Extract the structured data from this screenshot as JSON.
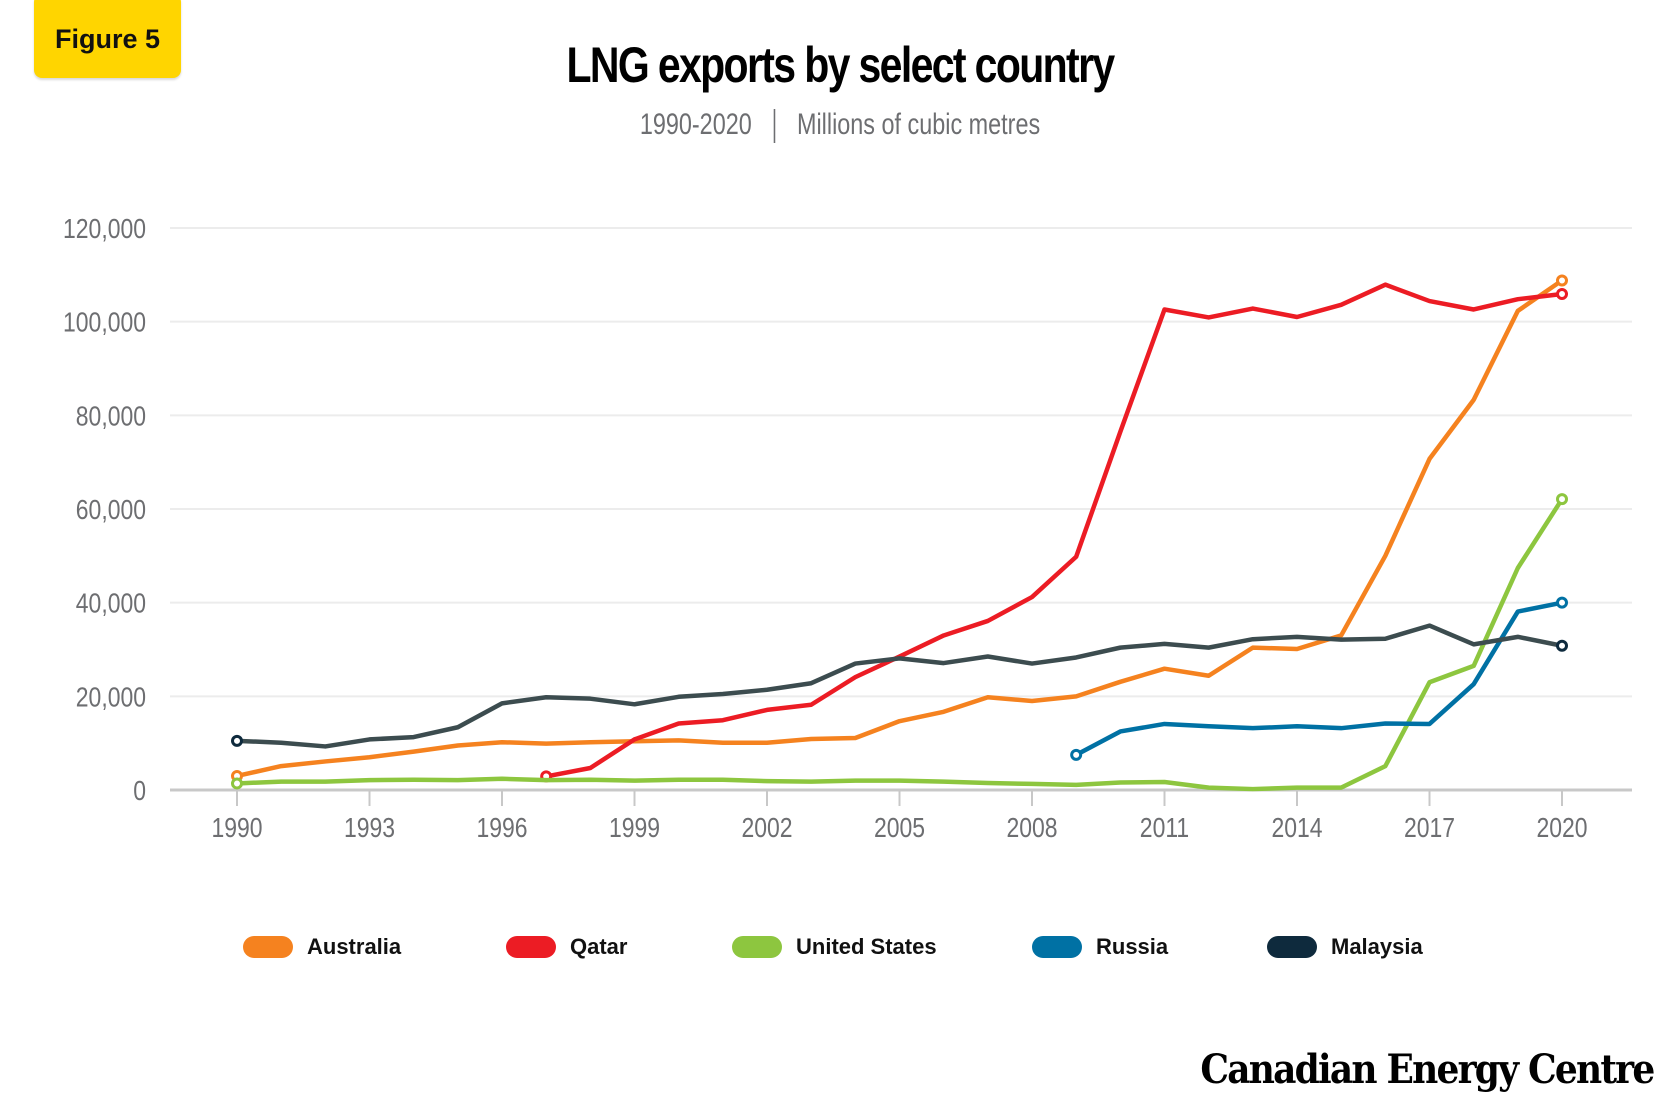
{
  "badge": "Figure 5",
  "logo": "Canadian Energy Centre",
  "chart_data": {
    "type": "line",
    "title": "LNG exports by select country",
    "subtitle_period": "1990-2020",
    "subtitle_unit": "Millions of cubic metres",
    "xlim": [
      1990,
      2020
    ],
    "ylim": [
      0,
      120000
    ],
    "x_ticks": [
      1990,
      1993,
      1996,
      1999,
      2002,
      2005,
      2008,
      2011,
      2014,
      2017,
      2020
    ],
    "y_ticks": [
      0,
      20000,
      40000,
      60000,
      80000,
      100000,
      120000
    ],
    "y_tick_labels": [
      "0",
      "20,000",
      "40,000",
      "60,000",
      "80,000",
      "100,000",
      "120,000"
    ],
    "grid": "horizontal",
    "legend_position": "bottom",
    "series": [
      {
        "name": "Australia",
        "color": "#f5821f",
        "start": 1990,
        "values": [
          3000,
          5100,
          6100,
          7000,
          8200,
          9500,
          10200,
          9900,
          10200,
          10400,
          10600,
          10100,
          10100,
          10900,
          11100,
          14700,
          16700,
          19800,
          19000,
          20000,
          23100,
          25900,
          24400,
          30400,
          30100,
          33000,
          50000,
          70700,
          83300,
          102300,
          108800
        ]
      },
      {
        "name": "Qatar",
        "color": "#ec1c24",
        "start": 1997,
        "values": [
          2900,
          4700,
          10800,
          14200,
          14900,
          17100,
          18200,
          24100,
          28500,
          33000,
          36100,
          41200,
          49800,
          76500,
          102600,
          100900,
          102800,
          101000,
          103600,
          107900,
          104400,
          102600,
          104800,
          105900
        ]
      },
      {
        "name": "United States",
        "color": "#8dc63f",
        "start": 1990,
        "values": [
          1400,
          1800,
          1800,
          2100,
          2200,
          2100,
          2400,
          2100,
          2200,
          2000,
          2200,
          2200,
          1900,
          1800,
          2000,
          2000,
          1800,
          1500,
          1300,
          1100,
          1600,
          1700,
          500,
          200,
          500,
          500,
          5100,
          23000,
          26500,
          47400,
          62100
        ]
      },
      {
        "name": "Russia",
        "color": "#0071a4",
        "start": 2009,
        "values": [
          7500,
          12500,
          14100,
          13600,
          13200,
          13600,
          13200,
          14200,
          14100,
          22600,
          38100,
          40000
        ]
      },
      {
        "name": "Malaysia",
        "color": "#0e2a3d",
        "line_color": "#3c4c4f",
        "start": 1990,
        "values": [
          10500,
          10100,
          9300,
          10800,
          11300,
          13400,
          18500,
          19800,
          19500,
          18300,
          19900,
          20500,
          21400,
          22800,
          27000,
          28100,
          27100,
          28500,
          27000,
          28300,
          30400,
          31200,
          30400,
          32200,
          32700,
          32100,
          32300,
          35100,
          31100,
          32700,
          30800
        ]
      }
    ]
  }
}
